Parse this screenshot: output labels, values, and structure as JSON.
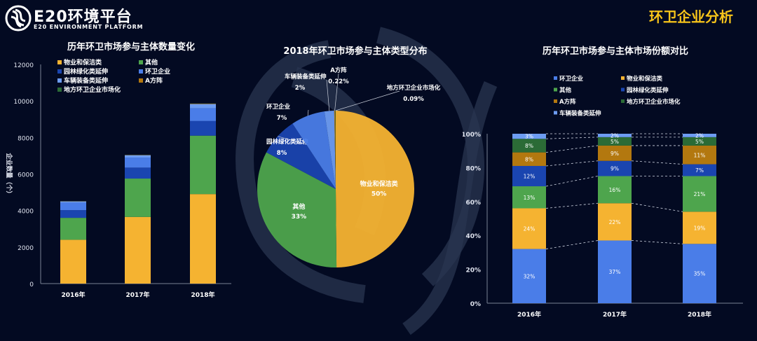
{
  "header": {
    "logo_text": "E20环境平台",
    "logo_subtitle": "E20 ENVIRONMENT PLATFORM",
    "page_title": "环卫企业分析"
  },
  "colors": {
    "物业和保洁类": "#f5b331",
    "其他": "#4ea54d",
    "园林绿化类延伸": "#1a45b0",
    "环卫企业": "#4a7de8",
    "车辆装备类延伸": "#6d9cf2",
    "A方阵": "#b3780f",
    "地方环卫企业市场化": "#2b6b36",
    "title_accent": "#f7c41a"
  },
  "chart_data": [
    {
      "type": "bar",
      "stacked": true,
      "title": "历年环卫市场参与主体数量变化",
      "ylabel": "企业数量（个）",
      "ylim": [
        0,
        12000
      ],
      "yticks": [
        0,
        2000,
        4000,
        6000,
        8000,
        10000,
        12000
      ],
      "categories": [
        "2016年",
        "2017年",
        "2018年"
      ],
      "legend": "top",
      "series": [
        {
          "name": "物业和保洁类",
          "values": [
            2400,
            3650,
            4900
          ]
        },
        {
          "name": "其他",
          "values": [
            1200,
            2100,
            3200
          ]
        },
        {
          "name": "园林绿化类延伸",
          "values": [
            420,
            600,
            800
          ]
        },
        {
          "name": "环卫企业",
          "values": [
            400,
            550,
            700
          ]
        },
        {
          "name": "车辆装备类延伸",
          "values": [
            80,
            130,
            230
          ]
        },
        {
          "name": "A方阵",
          "values": [
            10,
            15,
            22
          ]
        },
        {
          "name": "地方环卫企业市场化",
          "values": [
            5,
            6,
            9
          ]
        }
      ]
    },
    {
      "type": "pie",
      "title": "2018年环卫市场参与主体类型分布",
      "slices": [
        {
          "name": "物业和保洁类",
          "value": 50,
          "label": "50%"
        },
        {
          "name": "其他",
          "value": 33,
          "label": "33%"
        },
        {
          "name": "园林绿化类延伸",
          "value": 8,
          "label": "8%"
        },
        {
          "name": "环卫企业",
          "value": 7,
          "label": "7%"
        },
        {
          "name": "车辆装备类延伸",
          "value": 2,
          "label": "2%"
        },
        {
          "name": "A方阵",
          "value": 0.22,
          "label": "0.22%"
        },
        {
          "name": "地方环卫企业市场化",
          "value": 0.09,
          "label": "0.09%"
        }
      ]
    },
    {
      "type": "bar",
      "stacked": true,
      "percent": true,
      "title": "历年环卫市场参与主体市场份额对比",
      "ylim": [
        0,
        100
      ],
      "yticks": [
        "0%",
        "20%",
        "40%",
        "60%",
        "80%",
        "100%"
      ],
      "categories": [
        "2016年",
        "2017年",
        "2018年"
      ],
      "legend": "top",
      "series": [
        {
          "name": "环卫企业",
          "values": [
            32,
            37,
            35
          ]
        },
        {
          "name": "物业和保洁类",
          "values": [
            24,
            22,
            19
          ]
        },
        {
          "name": "其他",
          "values": [
            13,
            16,
            21
          ]
        },
        {
          "name": "园林绿化类延伸",
          "values": [
            12,
            9,
            7
          ]
        },
        {
          "name": "A方阵",
          "values": [
            8,
            9,
            11
          ]
        },
        {
          "name": "地方环卫企业市场化",
          "values": [
            8,
            5,
            5
          ]
        },
        {
          "name": "车辆装备类延伸",
          "values": [
            3,
            2,
            2
          ]
        }
      ]
    }
  ]
}
